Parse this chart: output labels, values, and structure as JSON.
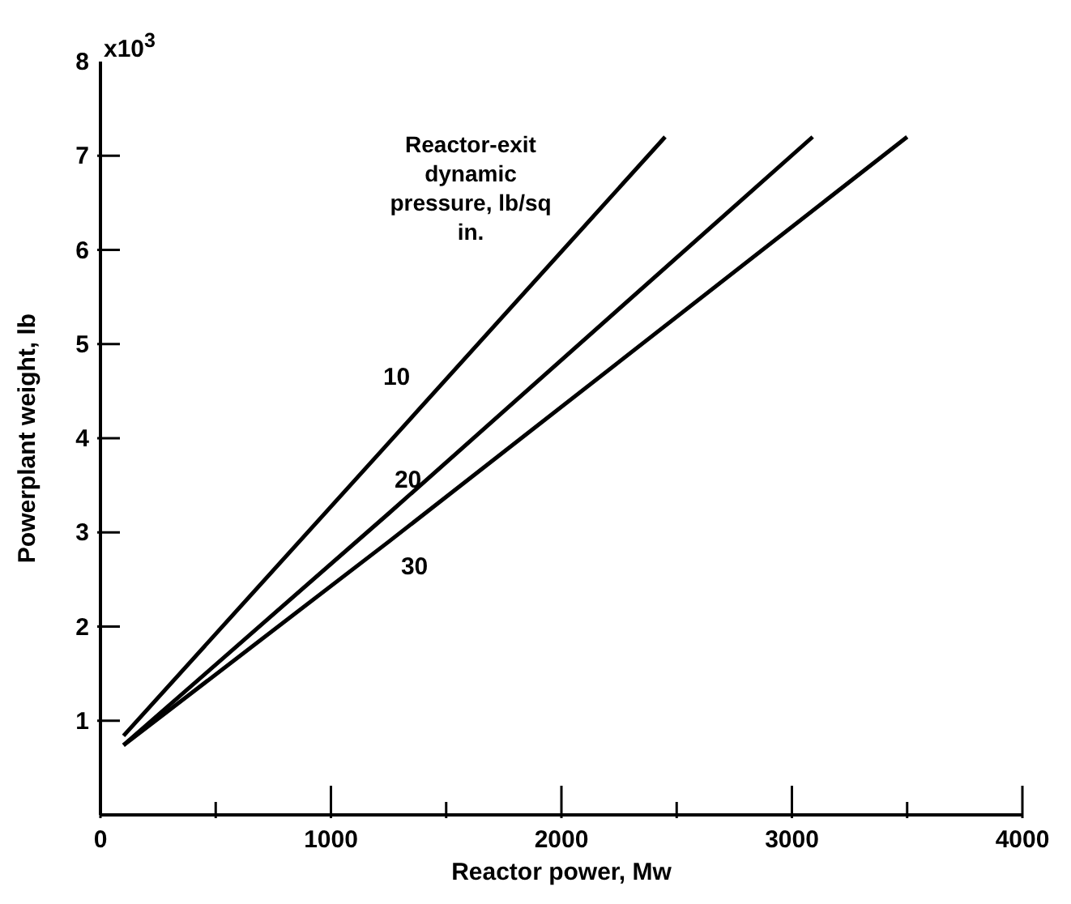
{
  "chart_data": {
    "type": "line",
    "xlabel": "Reactor power, Mw",
    "ylabel": "Powerplant weight, lb",
    "annotations": [
      "Reactor-exit dynamic pressure, lb/sq in.",
      "x10$^{3}$"
    ],
    "series": [
      {
        "name": "10",
        "color": "#000000",
        "x": [
          100,
          1250,
          2450
        ],
        "values": [
          0.84,
          3.95,
          7.2
        ]
      },
      {
        "name": "20",
        "color": "#000000",
        "x": [
          100,
          1250,
          3090
        ],
        "values": [
          0.74,
          3.2,
          7.2
        ]
      },
      {
        "name": "30",
        "color": "#000000",
        "x": [
          100,
          1250,
          3500
        ],
        "values": [
          0.74,
          2.9,
          7.2
        ]
      }
    ],
    "xlim": [
      0,
      4000
    ],
    "xticks": [
      0,
      {
        "value": 500,
        "label": null
      },
      1000,
      {
        "value": 1500,
        "label": null
      },
      2000,
      {
        "value": 2500,
        "label": null
      },
      3000,
      {
        "value": 3500,
        "label": null
      },
      4000
    ],
    "ylim": [
      0,
      8
    ],
    "yticks": [
      1,
      2,
      3,
      4,
      5,
      6,
      7,
      8
    ],
    "grid": false,
    "legend": false,
    "marker": "none",
    "line_style": "solid"
  }
}
